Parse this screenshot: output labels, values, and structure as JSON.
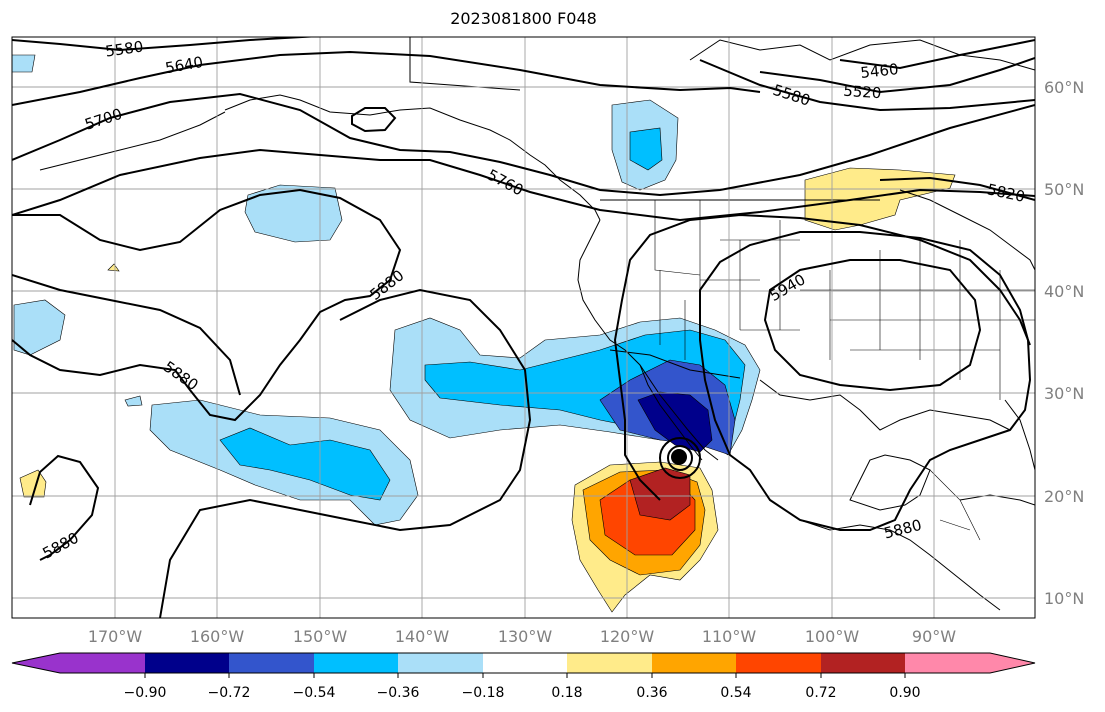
{
  "title": "2023081800 F048",
  "lon_labels": [
    "170°W",
    "160°W",
    "150°W",
    "140°W",
    "130°W",
    "120°W",
    "110°W",
    "100°W",
    "90°W"
  ],
  "lat_labels": [
    "60°N",
    "50°N",
    "40°N",
    "30°N",
    "20°N",
    "10°N"
  ],
  "contour_labels": [
    "5580",
    "5640",
    "5700",
    "5760",
    "5880",
    "5880",
    "5880",
    "5940",
    "5880",
    "5820",
    "5520",
    "5460",
    "5580"
  ],
  "colorbar": {
    "ticks": [
      "−0.90",
      "−0.72",
      "−0.54",
      "−0.36",
      "−0.18",
      "0.18",
      "0.36",
      "0.54",
      "0.72",
      "0.90"
    ],
    "colors": [
      "#9933cc",
      "#00008b",
      "#3355cc",
      "#00bfff",
      "#aadff8",
      "#ffffff",
      "#ffeb8a",
      "#ffa500",
      "#ff4500",
      "#b22222",
      "#ff88aa"
    ]
  },
  "shading_colors": {
    "light_blue": "#aadff8",
    "blue": "#00bfff",
    "mid_blue": "#3355cc",
    "navy": "#00008b",
    "yellow": "#ffeb8a",
    "orange": "#ffa500",
    "red_orange": "#ff4500",
    "dark_red": "#b22222"
  },
  "storm_marker_color": "#000000"
}
